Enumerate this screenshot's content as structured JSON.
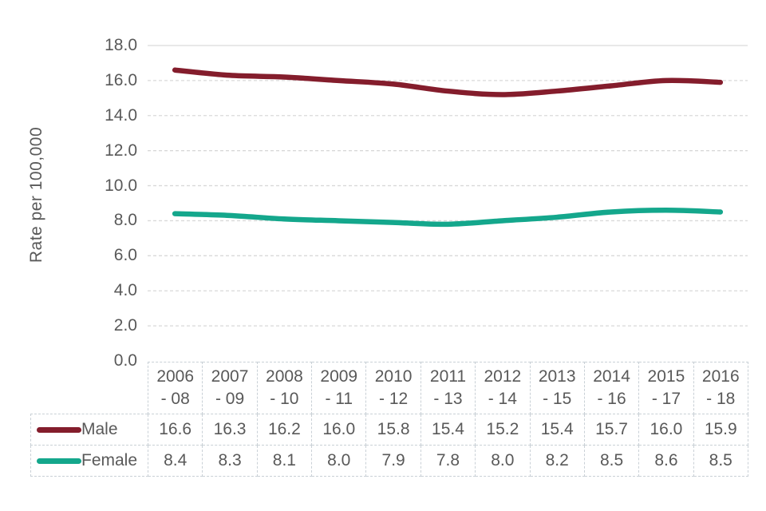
{
  "chart_data": {
    "type": "line",
    "title": "",
    "xlabel": "",
    "ylabel": "Rate per 100,000",
    "categories": [
      "2006 - 08",
      "2007 - 09",
      "2008 - 10",
      "2009 - 11",
      "2010 - 12",
      "2011 - 13",
      "2012 - 14",
      "2013 - 15",
      "2014 - 16",
      "2015 - 17",
      "2016 - 18"
    ],
    "series": [
      {
        "name": "Male",
        "color": "#841d2c",
        "values": [
          16.6,
          16.3,
          16.2,
          16.0,
          15.8,
          15.4,
          15.2,
          15.4,
          15.7,
          16.0,
          15.9
        ]
      },
      {
        "name": "Female",
        "color": "#14a78c",
        "values": [
          8.4,
          8.3,
          8.1,
          8.0,
          7.9,
          7.8,
          8.0,
          8.2,
          8.5,
          8.6,
          8.5
        ]
      }
    ],
    "ylim": [
      0,
      18
    ],
    "yticks": [
      18,
      16,
      14,
      12,
      10,
      8,
      6,
      4,
      2,
      0
    ],
    "ytick_decimals": 1,
    "value_decimals": 1,
    "grid": "horizontal",
    "gridline_style": "dashed",
    "line_smooth": true,
    "legend_position": "data-table-left"
  },
  "styles": {
    "grid_color": "#d9d9d9",
    "axis_text_color": "#595959",
    "table_border_color": "#c9d0d6",
    "background": "#ffffff"
  }
}
